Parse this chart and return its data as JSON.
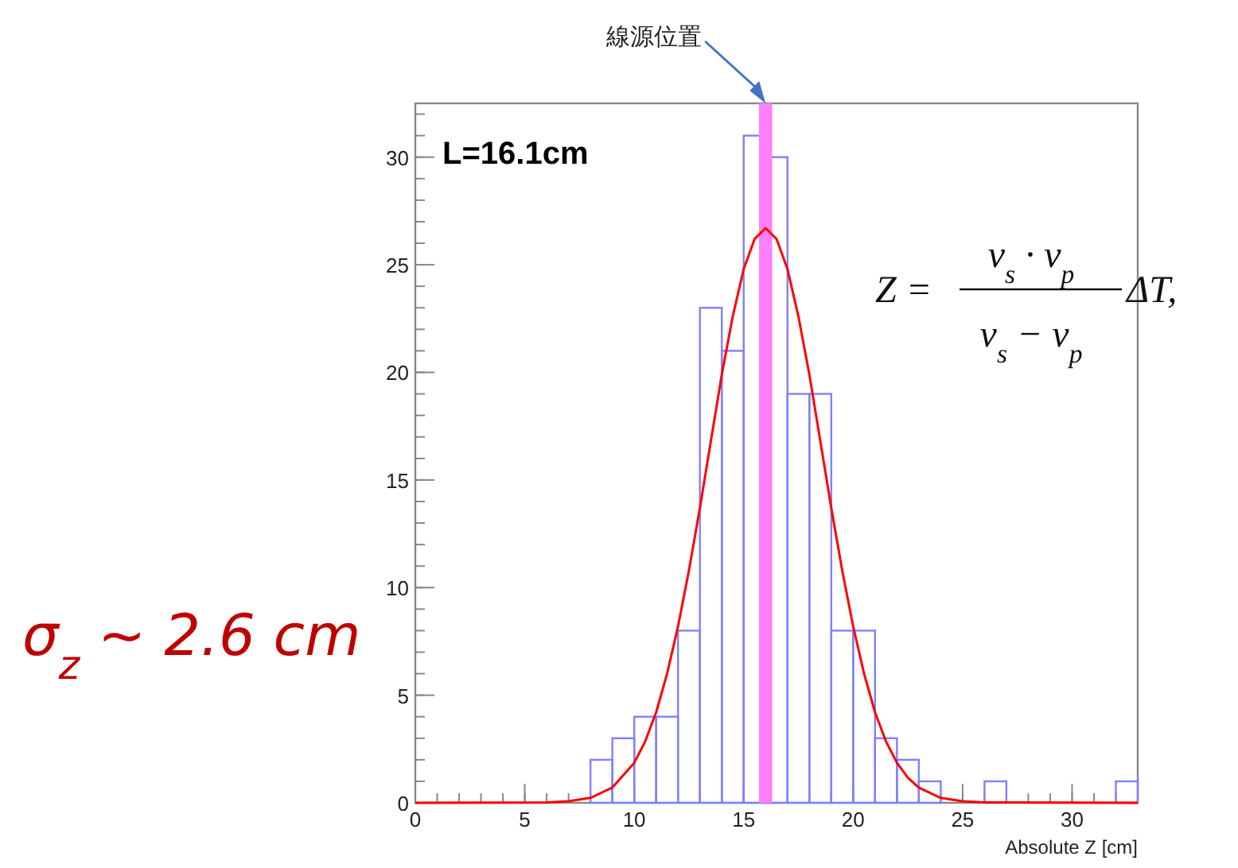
{
  "chart_data": {
    "type": "histogram",
    "xlabel": "Absolute Z [cm]",
    "xlim": [
      0,
      33
    ],
    "ylim": [
      0,
      32.5
    ],
    "xticks": [
      0,
      5,
      10,
      15,
      20,
      25,
      30
    ],
    "yticks": [
      0,
      5,
      10,
      15,
      20,
      25,
      30
    ],
    "series": [
      {
        "type": "histogram",
        "color": "#8080ff",
        "bins": [
          0,
          1,
          2,
          3,
          4,
          5,
          6,
          7,
          8,
          9,
          10,
          11,
          12,
          13,
          14,
          15,
          16,
          17,
          18,
          19,
          20,
          21,
          22,
          23,
          24,
          25,
          26,
          27,
          28,
          29,
          30,
          31,
          32,
          33
        ],
        "values": [
          0,
          0,
          0,
          0,
          0,
          0,
          0,
          0,
          2,
          3,
          4,
          4,
          8,
          23,
          21,
          31,
          30,
          19,
          19,
          8,
          8,
          3,
          2,
          1,
          0,
          0,
          1,
          0,
          0,
          0,
          0,
          0,
          1
        ]
      },
      {
        "type": "line",
        "color": "#ff0000",
        "x": [
          0,
          6,
          7,
          8,
          9,
          10,
          10.5,
          11,
          11.5,
          12,
          12.5,
          13,
          13.5,
          14,
          14.5,
          15,
          15.5,
          16,
          16.5,
          17,
          17.5,
          18,
          18.5,
          19,
          19.5,
          20,
          20.5,
          21,
          21.5,
          22,
          22.5,
          23,
          24,
          25,
          26,
          33
        ],
        "values": [
          0,
          0.02,
          0.07,
          0.23,
          0.71,
          1.86,
          2.85,
          4.2,
          6.0,
          8.2,
          10.8,
          13.7,
          16.8,
          19.9,
          22.6,
          24.8,
          26.2,
          26.7,
          26.2,
          24.8,
          22.6,
          19.9,
          16.8,
          13.7,
          10.8,
          8.2,
          6.0,
          4.2,
          2.85,
          1.86,
          1.17,
          0.71,
          0.23,
          0.07,
          0.02,
          0
        ]
      }
    ],
    "bands": [
      {
        "axis": "x",
        "from": 15.7,
        "to": 16.3,
        "label": "線源位置",
        "color": "#ff80ff"
      }
    ],
    "annotations": [
      "L=16.1cm",
      "σ$_{z}$ ~ 2.6 cm",
      "Z =",
      "v$_{s}$ · v$_{p}$",
      "v$_{s}$ − v$_{p}$",
      "ΔT,"
    ]
  }
}
